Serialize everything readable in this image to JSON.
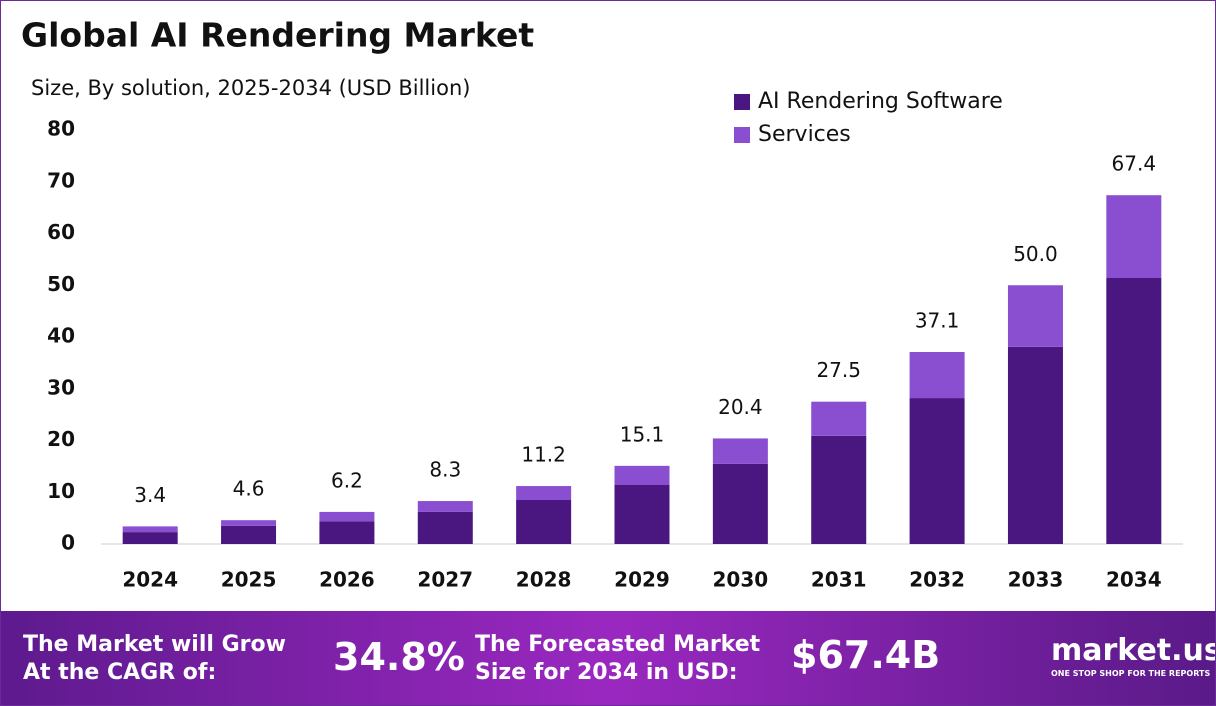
{
  "chart_data": {
    "type": "stacked-bar",
    "title": "Global AI Rendering Market",
    "subtitle": "Size, By solution, 2025-2034 (USD Billion)",
    "categories": [
      "2024",
      "2025",
      "2026",
      "2027",
      "2028",
      "2029",
      "2030",
      "2031",
      "2032",
      "2033",
      "2034"
    ],
    "series": [
      {
        "name": "AI Rendering Software",
        "color": "#4a1680",
        "values": [
          2.3,
          3.5,
          4.4,
          6.2,
          8.5,
          11.4,
          15.5,
          20.9,
          28.2,
          38.1,
          51.4
        ]
      },
      {
        "name": "Services",
        "color": "#8a4fd0",
        "values": [
          1.1,
          1.1,
          1.8,
          2.1,
          2.7,
          3.7,
          4.9,
          6.6,
          8.9,
          11.9,
          16.0
        ]
      }
    ],
    "totals": [
      3.4,
      4.6,
      6.2,
      8.3,
      11.2,
      15.1,
      20.4,
      27.5,
      37.1,
      50,
      67.4
    ],
    "total_labels": [
      "3.4",
      "4.6",
      "6.2",
      "8.3",
      "11.2",
      "15.1",
      "20.4",
      "27.5",
      "37.1",
      "50.0",
      "67.4"
    ],
    "ylim": [
      0,
      80
    ],
    "yticks": [
      0,
      10,
      20,
      30,
      40,
      50,
      60,
      70,
      80
    ],
    "grid": false,
    "legend": "top-right"
  },
  "footer": {
    "cagr_text": "The Market will Grow At the CAGR of:",
    "cagr": "34.8%",
    "forecast_text": "The Forecasted Market Size for 2034 in USD:",
    "forecast": "$67.4B",
    "logo": "market.us",
    "tagline": "ONE STOP SHOP FOR THE REPORTS"
  }
}
